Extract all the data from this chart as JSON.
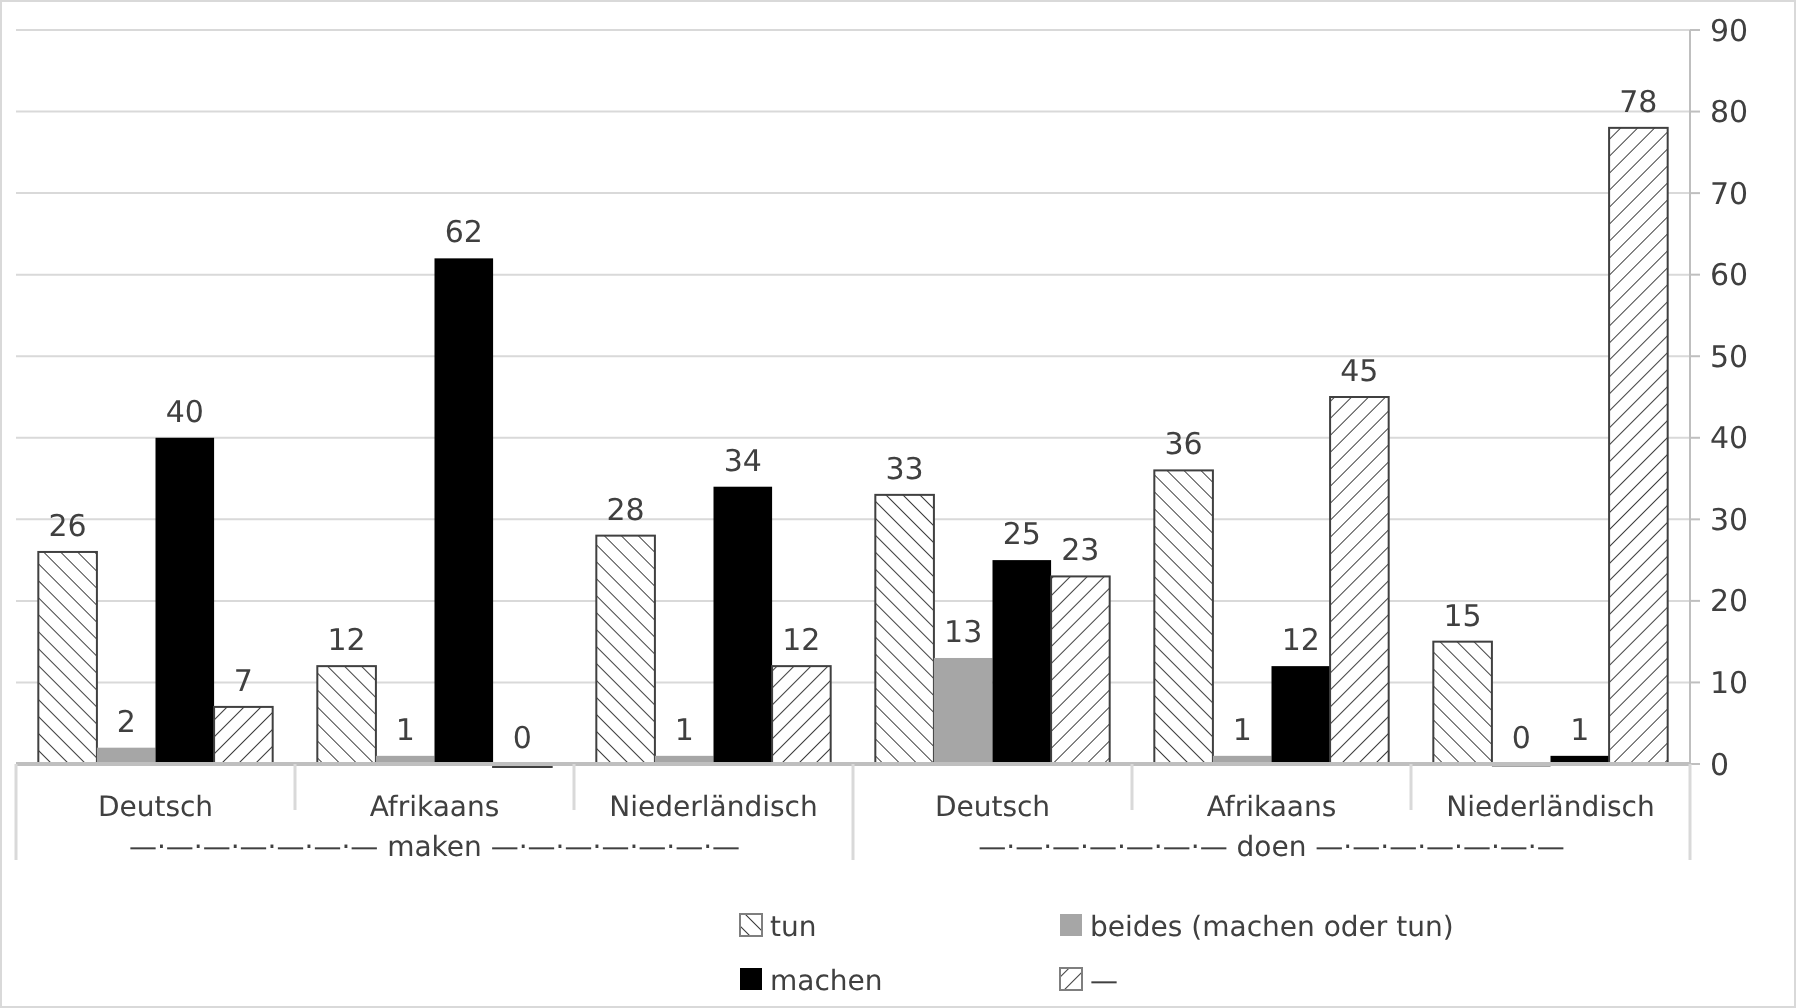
{
  "chart_data": {
    "type": "bar",
    "categories": [
      "Deutsch",
      "Afrikaans",
      "Niederländisch",
      "Deutsch",
      "Afrikaans",
      "Niederländisch"
    ],
    "series": [
      {
        "name": "tun",
        "color": "#404040",
        "values": [
          26,
          12,
          28,
          33,
          36,
          15
        ]
      },
      {
        "name": "beides (machen oder tun)",
        "color": "#a6a6a6",
        "values": [
          2,
          1,
          1,
          13,
          1,
          0
        ]
      },
      {
        "name": "machen",
        "color": "#000000",
        "values": [
          40,
          62,
          34,
          25,
          12,
          1
        ]
      },
      {
        "name": "—",
        "color": "#404040",
        "values": [
          7,
          0,
          12,
          23,
          45,
          78
        ]
      }
    ],
    "ylim": [
      0,
      90
    ],
    "yticks": [
      0,
      10,
      20,
      30,
      40,
      50,
      60,
      70,
      80,
      90
    ],
    "grid": "y",
    "data_labels": true,
    "legend": "bottom",
    "annotations": [
      "—·—·—·—·—·—·— maken —·—·—·—·—·—·—",
      "—·—·—·—·—·—·— doen —·—·—·—·—·—·—"
    ]
  }
}
